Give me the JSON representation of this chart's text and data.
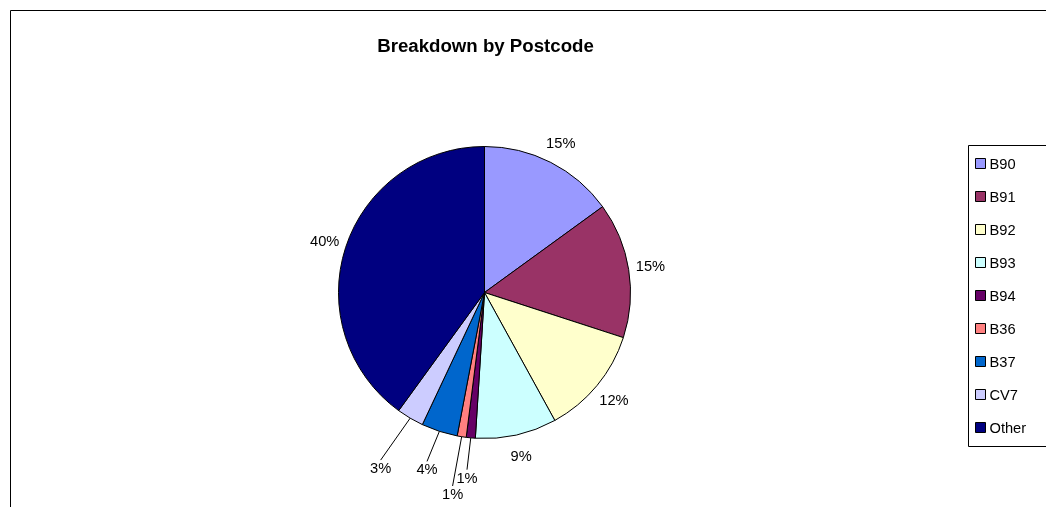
{
  "chart_data": {
    "type": "pie",
    "title": "Breakdown by Postcode",
    "categories": [
      "B90",
      "B91",
      "B92",
      "B93",
      "B94",
      "B36",
      "B37",
      "CV7",
      "Other"
    ],
    "values": [
      15,
      15,
      12,
      9,
      1,
      1,
      4,
      3,
      40
    ],
    "value_labels": [
      "15%",
      "15%",
      "12%",
      "9%",
      "1%",
      "1%",
      "4%",
      "3%",
      "40%"
    ],
    "colors": [
      "#9999ff",
      "#993366",
      "#ffffcc",
      "#ccffff",
      "#660066",
      "#ff8080",
      "#0066cc",
      "#ccccff",
      "#000080"
    ],
    "legend": "right"
  }
}
